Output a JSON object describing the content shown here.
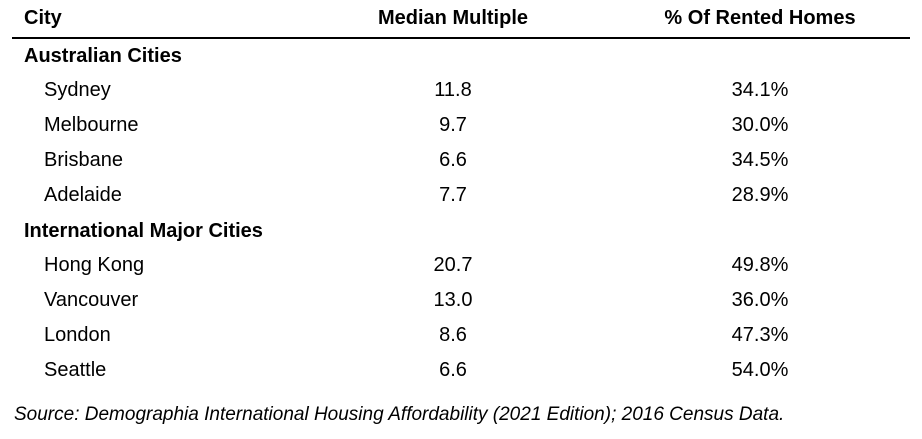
{
  "headers": {
    "city": "City",
    "median": "Median Multiple",
    "rented": "% Of Rented Homes"
  },
  "groups": [
    {
      "title": "Australian Cities",
      "rows": [
        {
          "city": "Sydney",
          "median": "11.8",
          "rented": "34.1%"
        },
        {
          "city": "Melbourne",
          "median": "9.7",
          "rented": "30.0%"
        },
        {
          "city": "Brisbane",
          "median": "6.6",
          "rented": "34.5%"
        },
        {
          "city": "Adelaide",
          "median": "7.7",
          "rented": "28.9%"
        }
      ]
    },
    {
      "title": "International Major Cities",
      "rows": [
        {
          "city": "Hong Kong",
          "median": "20.7",
          "rented": "49.8%"
        },
        {
          "city": "Vancouver",
          "median": "13.0",
          "rented": "36.0%"
        },
        {
          "city": "London",
          "median": "8.6",
          "rented": "47.3%"
        },
        {
          "city": "Seattle",
          "median": "6.6",
          "rented": "54.0%"
        }
      ]
    }
  ],
  "source": "Source: Demographia International Housing Affordability (2021 Edition); 2016 Census Data."
}
